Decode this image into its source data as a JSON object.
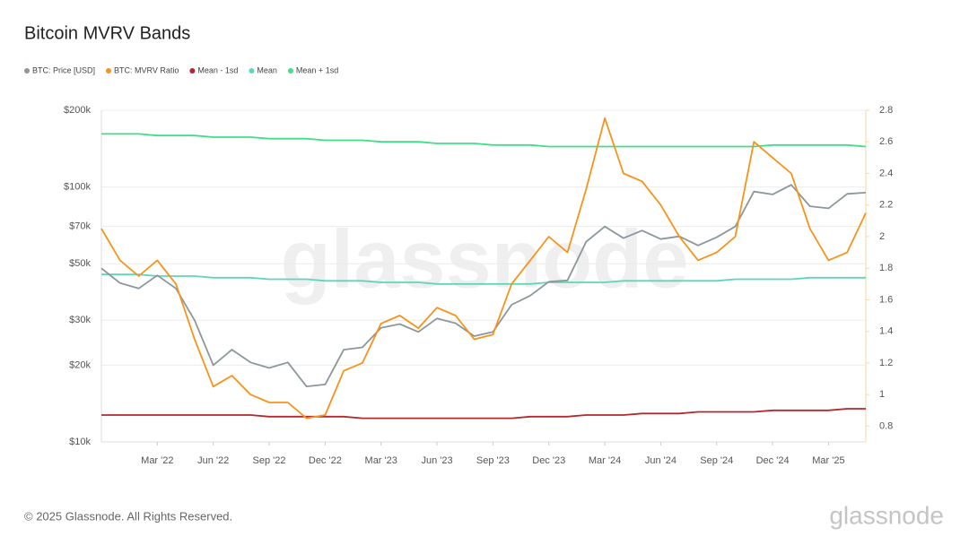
{
  "chart_data": {
    "type": "line",
    "title": "Bitcoin MVRV Bands",
    "watermark": "glassnode",
    "x": [
      "2021-12",
      "2022-01",
      "2022-02",
      "2022-03",
      "2022-04",
      "2022-05",
      "2022-06",
      "2022-07",
      "2022-08",
      "2022-09",
      "2022-10",
      "2022-11",
      "2022-12",
      "2023-01",
      "2023-02",
      "2023-03",
      "2023-04",
      "2023-05",
      "2023-06",
      "2023-07",
      "2023-08",
      "2023-09",
      "2023-10",
      "2023-11",
      "2023-12",
      "2024-01",
      "2024-02",
      "2024-03",
      "2024-04",
      "2024-05",
      "2024-06",
      "2024-07",
      "2024-08",
      "2024-09",
      "2024-10",
      "2024-11",
      "2024-12",
      "2025-01",
      "2025-02",
      "2025-03",
      "2025-04",
      "2025-05"
    ],
    "xlim": [
      "2021-12",
      "2025-05"
    ],
    "xticks": [
      {
        "value": "2022-03",
        "label": "Mar '22"
      },
      {
        "value": "2022-06",
        "label": "Jun '22"
      },
      {
        "value": "2022-09",
        "label": "Sep '22"
      },
      {
        "value": "2022-12",
        "label": "Dec '22"
      },
      {
        "value": "2023-03",
        "label": "Mar '23"
      },
      {
        "value": "2023-06",
        "label": "Jun '23"
      },
      {
        "value": "2023-09",
        "label": "Sep '23"
      },
      {
        "value": "2023-12",
        "label": "Dec '23"
      },
      {
        "value": "2024-03",
        "label": "Mar '24"
      },
      {
        "value": "2024-06",
        "label": "Jun '24"
      },
      {
        "value": "2024-09",
        "label": "Sep '24"
      },
      {
        "value": "2024-12",
        "label": "Dec '24"
      },
      {
        "value": "2025-03",
        "label": "Mar '25"
      }
    ],
    "ylog": true,
    "ylim": [
      10000,
      200000
    ],
    "yticks": [
      {
        "value": 10000,
        "label": "$10k"
      },
      {
        "value": 20000,
        "label": "$20k"
      },
      {
        "value": 30000,
        "label": "$30k"
      },
      {
        "value": 50000,
        "label": "$50k"
      },
      {
        "value": 70000,
        "label": "$70k"
      },
      {
        "value": 100000,
        "label": "$100k"
      },
      {
        "value": 200000,
        "label": "$200k"
      }
    ],
    "y2lim": [
      0.7,
      2.8
    ],
    "y2ticks": [
      0.8,
      1,
      1.2,
      1.4,
      1.6,
      1.8,
      2,
      2.2,
      2.4,
      2.6,
      2.8
    ],
    "grid": true,
    "legend": "top-left",
    "series": [
      {
        "name": "BTC: Price [USD]",
        "color": "#8b979b",
        "axis": "y",
        "values": [
          48000,
          42000,
          40000,
          45000,
          40000,
          30000,
          20000,
          23000,
          20500,
          19500,
          20500,
          16500,
          16800,
          23000,
          23500,
          28000,
          29000,
          27000,
          30500,
          29200,
          26000,
          27000,
          34500,
          37500,
          42500,
          43000,
          61000,
          70000,
          63000,
          67500,
          62500,
          64000,
          59000,
          63500,
          70000,
          96000,
          93500,
          102000,
          84000,
          82500,
          94000,
          95000
        ]
      },
      {
        "name": "BTC: MVRV Ratio",
        "color": "#f7931a",
        "axis": "y2",
        "values": [
          2.05,
          1.85,
          1.75,
          1.85,
          1.7,
          1.35,
          1.05,
          1.12,
          1.0,
          0.95,
          0.95,
          0.85,
          0.87,
          1.15,
          1.2,
          1.45,
          1.5,
          1.42,
          1.55,
          1.5,
          1.35,
          1.38,
          1.7,
          1.85,
          2.0,
          1.9,
          2.3,
          2.75,
          2.4,
          2.35,
          2.2,
          2.0,
          1.85,
          1.9,
          2.0,
          2.6,
          2.5,
          2.4,
          2.05,
          1.85,
          1.9,
          2.15
        ]
      },
      {
        "name": "Mean - 1sd",
        "color": "#b3282d",
        "axis": "y2",
        "values": [
          0.87,
          0.87,
          0.87,
          0.87,
          0.87,
          0.87,
          0.87,
          0.87,
          0.87,
          0.86,
          0.86,
          0.86,
          0.86,
          0.86,
          0.85,
          0.85,
          0.85,
          0.85,
          0.85,
          0.85,
          0.85,
          0.85,
          0.85,
          0.86,
          0.86,
          0.86,
          0.87,
          0.87,
          0.87,
          0.88,
          0.88,
          0.88,
          0.89,
          0.89,
          0.89,
          0.89,
          0.9,
          0.9,
          0.9,
          0.9,
          0.91,
          0.91
        ]
      },
      {
        "name": "Mean",
        "color": "#5fd6b8",
        "axis": "y2",
        "values": [
          1.76,
          1.76,
          1.76,
          1.75,
          1.75,
          1.75,
          1.74,
          1.74,
          1.74,
          1.73,
          1.73,
          1.73,
          1.72,
          1.72,
          1.72,
          1.71,
          1.71,
          1.71,
          1.7,
          1.7,
          1.7,
          1.7,
          1.7,
          1.7,
          1.71,
          1.71,
          1.71,
          1.71,
          1.72,
          1.72,
          1.72,
          1.72,
          1.72,
          1.72,
          1.73,
          1.73,
          1.73,
          1.73,
          1.74,
          1.74,
          1.74,
          1.74
        ]
      },
      {
        "name": "Mean + 1sd",
        "color": "#3fdf86",
        "axis": "y2",
        "values": [
          2.65,
          2.65,
          2.65,
          2.64,
          2.64,
          2.64,
          2.63,
          2.63,
          2.63,
          2.62,
          2.62,
          2.62,
          2.61,
          2.61,
          2.61,
          2.6,
          2.6,
          2.6,
          2.59,
          2.59,
          2.59,
          2.58,
          2.58,
          2.58,
          2.57,
          2.57,
          2.57,
          2.57,
          2.57,
          2.57,
          2.57,
          2.57,
          2.57,
          2.57,
          2.57,
          2.57,
          2.58,
          2.58,
          2.58,
          2.58,
          2.58,
          2.57
        ]
      }
    ]
  },
  "footer": {
    "copyright": "© 2025 Glassnode. All Rights Reserved.",
    "logo": "glassnode"
  }
}
